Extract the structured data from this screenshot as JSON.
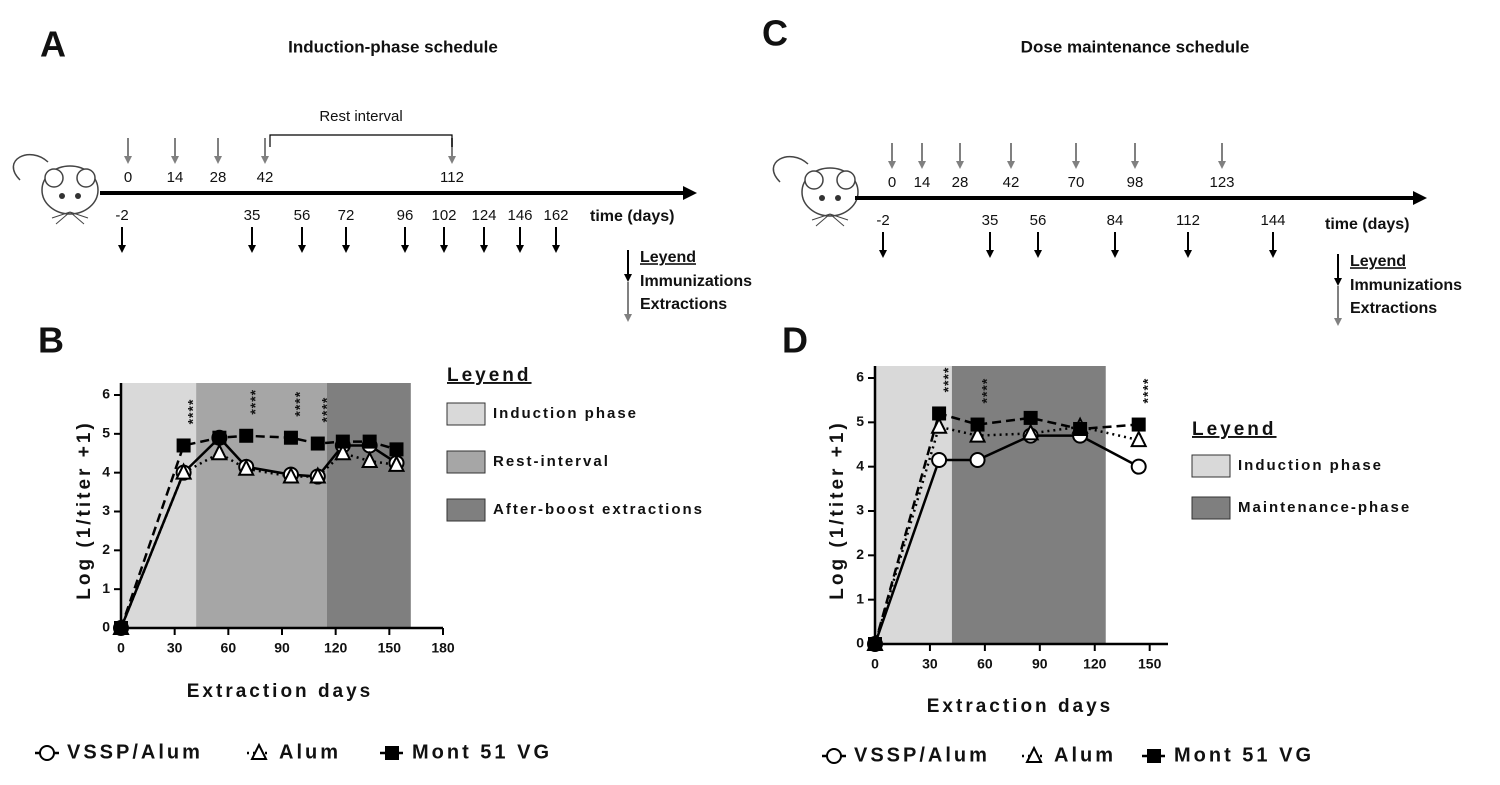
{
  "panels": [
    {
      "label": "A",
      "title": "Induction-phase schedule",
      "top_days": [
        0,
        14,
        28,
        42,
        112
      ],
      "bottom_days": [
        -2,
        35,
        56,
        72,
        96,
        102,
        124,
        146,
        162
      ],
      "bracket": "Rest interval",
      "axis_label": "time (days)",
      "legend": {
        "title": "Leyend",
        "items": [
          "Immunizations",
          "Extractions"
        ]
      }
    },
    {
      "label": "C",
      "title": "Dose maintenance schedule",
      "top_days": [
        0,
        14,
        28,
        42,
        70,
        98,
        123
      ],
      "bottom_days": [
        -2,
        35,
        56,
        84,
        112,
        144
      ],
      "axis_label": "time (days)",
      "legend": {
        "title": "Leyend",
        "items": [
          "Immunizations",
          "Extractions"
        ]
      }
    }
  ],
  "chart_data": [
    {
      "type": "line",
      "panel_label": "B",
      "x_label": "Extraction days",
      "y_label": "Log (1/titer +1)",
      "xlim": [
        0,
        180
      ],
      "xticks": [
        0,
        30,
        60,
        90,
        120,
        150,
        180
      ],
      "ylim": [
        0,
        6
      ],
      "yticks": [
        0,
        1,
        2,
        3,
        4,
        5,
        6
      ],
      "regions": [
        {
          "name": "Induction phase",
          "color": "#d9d9d9",
          "range": [
            0,
            42
          ]
        },
        {
          "name": "Rest-interval",
          "color": "#a6a6a6",
          "range": [
            42,
            115
          ]
        },
        {
          "name": "After-boost extractions",
          "color": "#7f7f7f",
          "range": [
            115,
            162
          ]
        }
      ],
      "legend_title": "Leyend",
      "annotations": [
        "****",
        "****",
        "****",
        "****"
      ],
      "x": [
        0,
        35,
        55,
        70,
        95,
        110,
        124,
        139,
        154
      ],
      "series": [
        {
          "name": "VSSP/Alum",
          "color": "#000000",
          "style": "solid",
          "marker": "circle",
          "values": [
            0,
            4.0,
            4.9,
            4.15,
            3.95,
            3.9,
            4.7,
            4.7,
            4.25
          ]
        },
        {
          "name": "Alum",
          "color": "#000000",
          "style": "dotted",
          "marker": "triangle",
          "values": [
            0,
            4.0,
            4.5,
            4.1,
            3.9,
            3.9,
            4.5,
            4.3,
            4.2
          ]
        },
        {
          "name": "Mont 51 VG",
          "color": "#000000",
          "style": "dashed",
          "marker": "square",
          "values": [
            0,
            4.7,
            4.9,
            4.95,
            4.9,
            4.75,
            4.8,
            4.8,
            4.6
          ]
        }
      ]
    },
    {
      "type": "line",
      "panel_label": "D",
      "x_label": "Extraction days",
      "y_label": "Log (1/titer +1)",
      "xlim": [
        0,
        160
      ],
      "xticks": [
        0,
        30,
        60,
        90,
        120,
        150
      ],
      "ylim": [
        0,
        6
      ],
      "yticks": [
        0,
        1,
        2,
        3,
        4,
        5,
        6
      ],
      "regions": [
        {
          "name": "Induction phase",
          "color": "#d9d9d9",
          "range": [
            0,
            42
          ]
        },
        {
          "name": "Maintenance-phase",
          "color": "#7f7f7f",
          "range": [
            42,
            126
          ]
        }
      ],
      "legend_title": "Leyend",
      "annotations": [
        "****",
        "****",
        "****"
      ],
      "x": [
        0,
        35,
        56,
        85,
        112,
        144
      ],
      "series": [
        {
          "name": "VSSP/Alum",
          "color": "#000000",
          "style": "solid",
          "marker": "circle",
          "values": [
            0,
            4.15,
            4.15,
            4.7,
            4.7,
            4.0
          ]
        },
        {
          "name": "Alum",
          "color": "#000000",
          "style": "dotted",
          "marker": "triangle",
          "values": [
            0,
            4.9,
            4.7,
            4.75,
            4.9,
            4.6
          ]
        },
        {
          "name": "Mont 51 VG",
          "color": "#000000",
          "style": "dashed",
          "marker": "square",
          "values": [
            0,
            5.2,
            4.95,
            5.1,
            4.85,
            4.95
          ]
        }
      ]
    }
  ]
}
